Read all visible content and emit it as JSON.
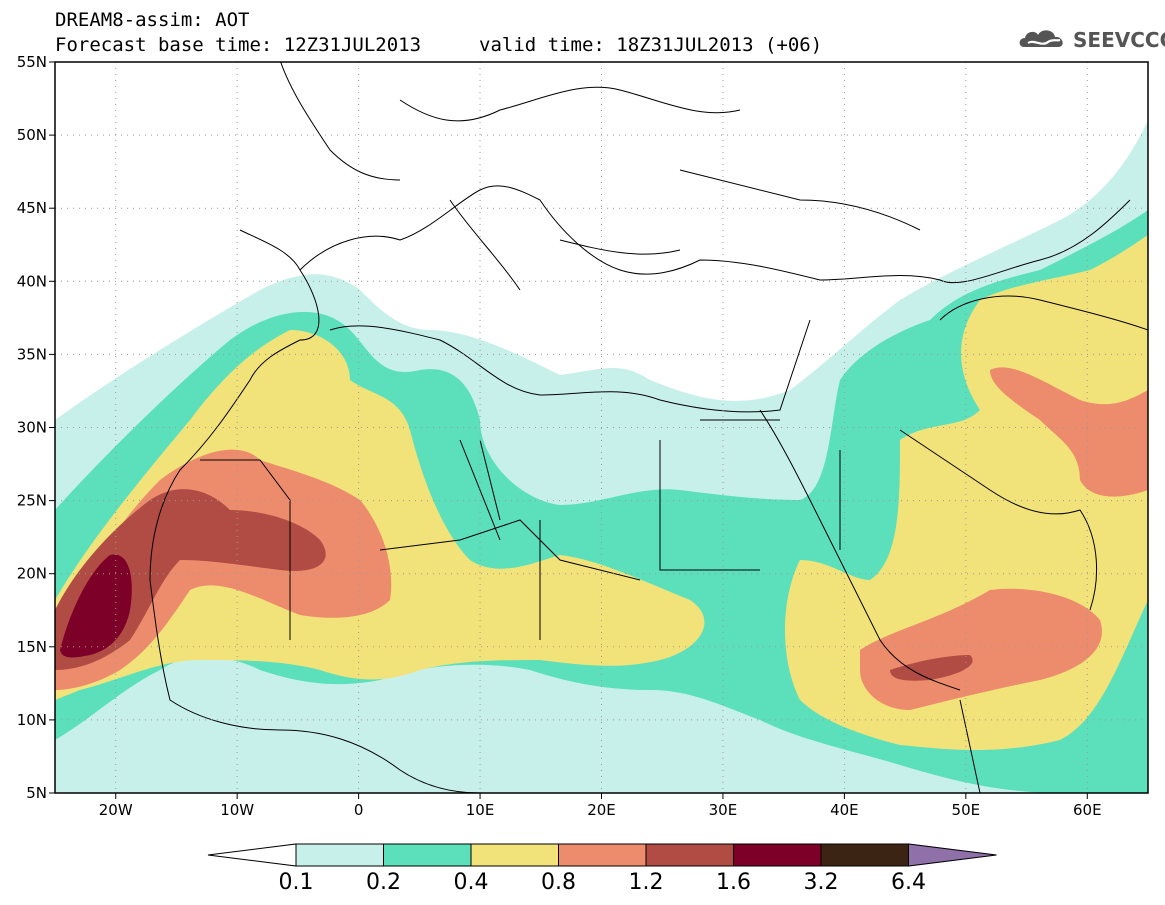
{
  "header": {
    "line1": "DREAM8-assim: AOT",
    "base": "Forecast base time: 12Z31JUL2013",
    "valid": "valid time: 18Z31JUL2013 (+06)"
  },
  "logo": {
    "text": "SEEVCCC",
    "icon": "cloud-icon"
  },
  "map": {
    "projection": "lat-lon",
    "lon_range": [
      -25,
      65
    ],
    "lat_range": [
      5,
      55
    ],
    "lat_labels": [
      "55N",
      "50N",
      "45N",
      "40N",
      "35N",
      "30N",
      "25N",
      "20N",
      "15N",
      "10N",
      "5N"
    ],
    "lon_labels": [
      "20W",
      "10W",
      "0",
      "10E",
      "20E",
      "30E",
      "40E",
      "50E",
      "60E"
    ],
    "grid": "dotted"
  },
  "colorbar": {
    "levels": [
      "0.1",
      "0.2",
      "0.4",
      "0.8",
      "1.2",
      "1.6",
      "3.2",
      "6.4"
    ],
    "colors": [
      "#c8f0ea",
      "#5ce0bc",
      "#f2e27a",
      "#ec8c6c",
      "#b04c44",
      "#7c0028",
      "#3c2414"
    ],
    "under_color": "#ffffff",
    "over_color": "#9070a8"
  }
}
